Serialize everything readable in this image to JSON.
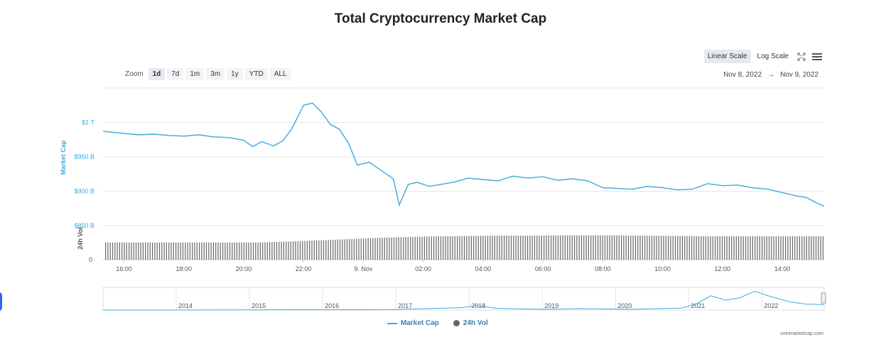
{
  "title": "Total Cryptocurrency Market Cap",
  "toolbar": {
    "linear_label": "Linear Scale",
    "log_label": "Log Scale",
    "active_scale": "linear"
  },
  "zoom": {
    "label": "Zoom",
    "options": [
      "1d",
      "7d",
      "1m",
      "3m",
      "1y",
      "YTD",
      "ALL"
    ],
    "active": "1d"
  },
  "range": {
    "from": "Nov 8, 2022",
    "arrow": "→",
    "to": "Nov 9, 2022"
  },
  "credits": "coinmarketcap.com",
  "colors": {
    "market_cap": "#3fa9dc",
    "volume": "#666666",
    "grid": "#e6e6e6"
  },
  "chart_data": {
    "type": "line",
    "title": "Total Cryptocurrency Market Cap",
    "x_ticks": [
      "16:00",
      "18:00",
      "20:00",
      "22:00",
      "9. Nov",
      "02:00",
      "04:00",
      "06:00",
      "08:00",
      "10:00",
      "12:00",
      "14:00"
    ],
    "x_range_hours": [
      15.3,
      39.4
    ],
    "y_axis_label": "Market Cap",
    "y_ticks": [
      "$850 B",
      "$900 B",
      "$950 B",
      "$1 T"
    ],
    "y_tick_values": [
      850,
      900,
      950,
      1000
    ],
    "y_range": [
      850,
      1050
    ],
    "y_unit": "billion USD",
    "series": [
      {
        "name": "Market Cap",
        "x_hours": [
          15.3,
          16,
          16.5,
          17,
          17.5,
          18,
          18.5,
          19,
          19.5,
          20,
          20.3,
          20.6,
          21,
          21.3,
          21.6,
          22,
          22.3,
          22.6,
          22.9,
          23.2,
          23.5,
          23.8,
          24.2,
          24.6,
          25,
          25.2,
          25.5,
          25.8,
          26.2,
          26.6,
          27,
          27.5,
          28,
          28.5,
          29,
          29.5,
          30,
          30.5,
          31,
          31.5,
          32,
          32.5,
          33,
          33.5,
          34,
          34.5,
          35,
          35.5,
          36,
          36.5,
          37,
          37.5,
          38,
          38.5,
          38.8,
          39.1,
          39.4
        ],
        "values": [
          987,
          984,
          982,
          983,
          981,
          980,
          982,
          979,
          978,
          974,
          965,
          972,
          966,
          973,
          990,
          1025,
          1028,
          1015,
          997,
          990,
          970,
          938,
          942,
          930,
          918,
          880,
          910,
          913,
          907,
          910,
          913,
          919,
          917,
          915,
          922,
          919,
          921,
          916,
          918,
          915,
          905,
          904,
          903,
          907,
          905,
          902,
          903,
          911,
          908,
          909,
          905,
          903,
          898,
          893,
          891,
          884,
          878
        ]
      },
      {
        "name": "24h Vol",
        "axis_label": "24h Vol",
        "axis_tick": "0",
        "x_hours": [
          15.3,
          17,
          19,
          20.5,
          21.5,
          22.5,
          23.5,
          24.5,
          25.5,
          26.5,
          27.5,
          28.5,
          29.5,
          30.5,
          31.5,
          32.5,
          33.5,
          34.5,
          35.5,
          36.5,
          37.5,
          38.5,
          39.4
        ],
        "values": [
          55,
          55,
          55,
          55,
          58,
          62,
          66,
          70,
          73,
          75,
          76,
          77,
          77,
          78,
          78,
          78,
          77,
          76,
          75,
          75,
          75,
          75,
          75
        ]
      }
    ],
    "navigator": {
      "years": [
        "2014",
        "2015",
        "2016",
        "2017",
        "2018",
        "2019",
        "2020",
        "2021",
        "2022"
      ]
    },
    "legend": [
      "Market Cap",
      "24h Vol"
    ],
    "legend_position": "bottom-center",
    "grid": true
  }
}
